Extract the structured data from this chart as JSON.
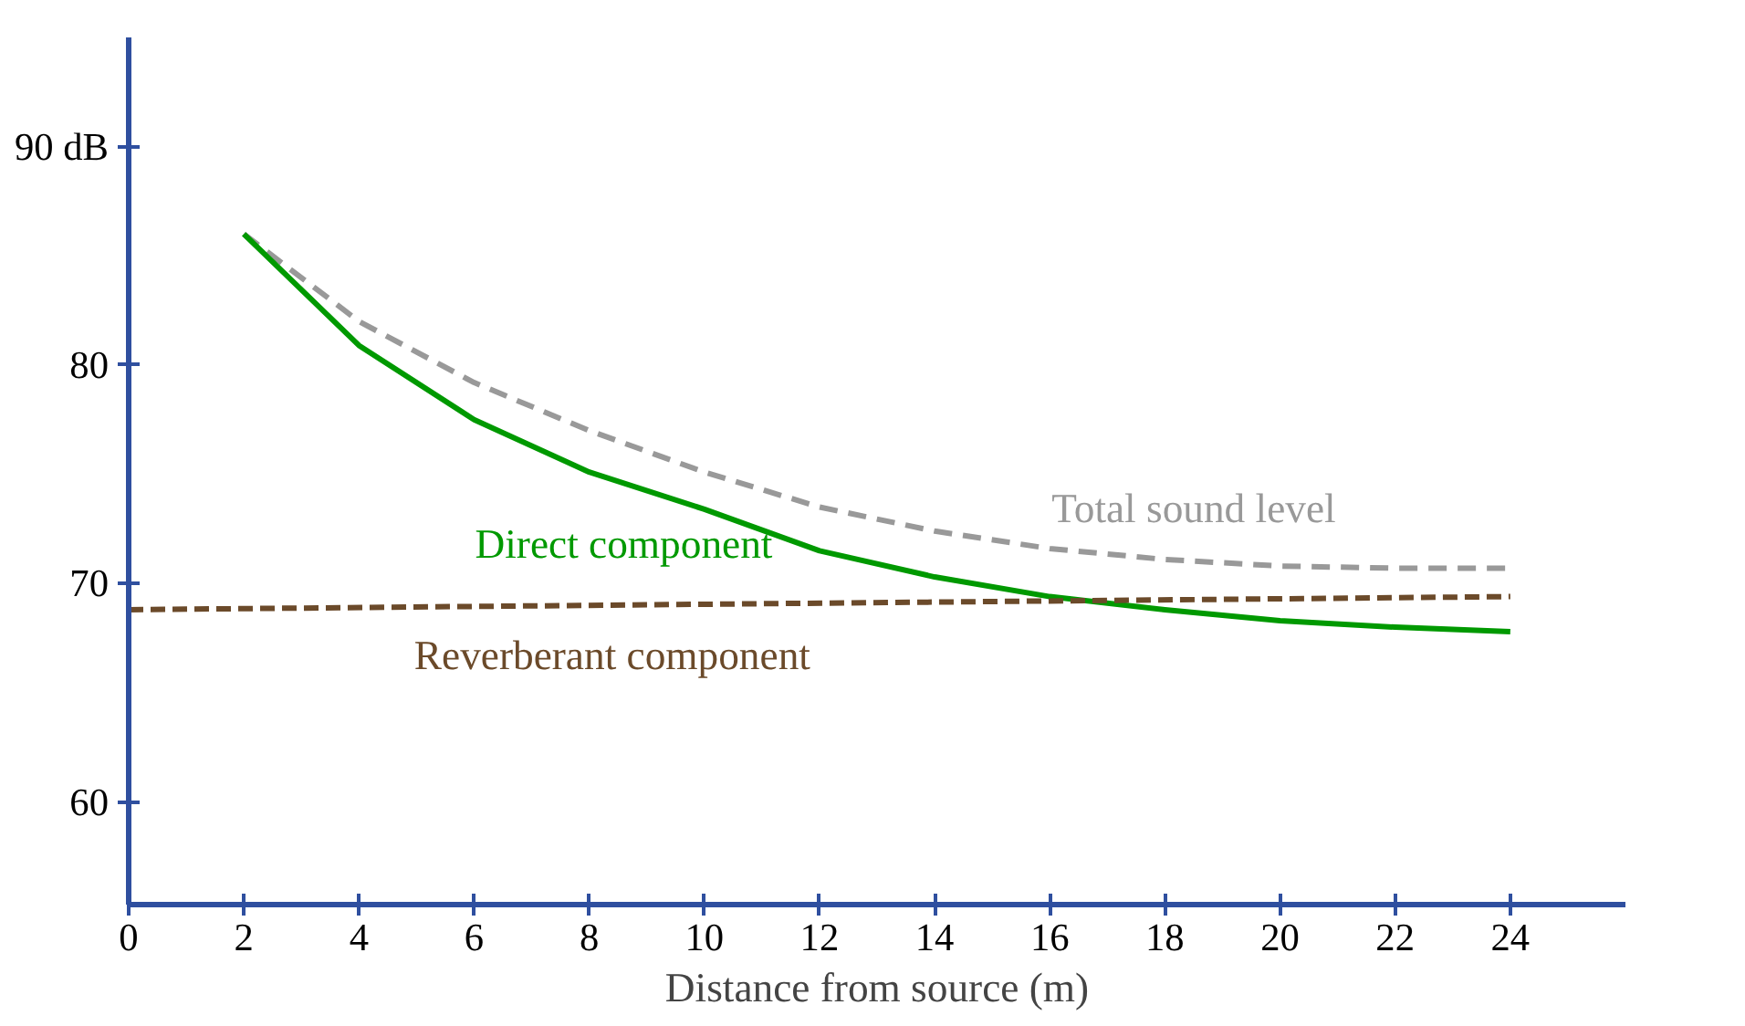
{
  "chart_data": {
    "type": "line",
    "xlabel": "Distance from source (m)",
    "xlim": [
      0,
      26
    ],
    "ylim": [
      55.3,
      95
    ],
    "xticks": [
      0,
      2,
      4,
      6,
      8,
      10,
      12,
      14,
      16,
      18,
      20,
      22,
      24
    ],
    "yticks": [
      60,
      70,
      80,
      {
        "value": 90,
        "label": "90 dB"
      }
    ],
    "grid": false,
    "marker": "none",
    "series": [
      {
        "name": "Total sound level",
        "color": "#999999",
        "line_style": "dashed",
        "x": [
          2,
          4,
          6,
          8,
          10,
          12,
          14,
          16,
          18,
          20,
          22,
          24
        ],
        "values": [
          86,
          82.0,
          79.2,
          77.0,
          75.1,
          73.5,
          72.4,
          71.6,
          71.1,
          70.8,
          70.7,
          70.7
        ]
      },
      {
        "name": "Direct component",
        "color": "#009900",
        "line_style": "solid",
        "x": [
          2,
          4,
          6,
          8,
          10,
          12,
          14,
          16,
          18,
          20,
          22,
          24
        ],
        "values": [
          86,
          80.9,
          77.5,
          75.1,
          73.4,
          71.5,
          70.3,
          69.4,
          68.8,
          68.3,
          68.0,
          67.8
        ]
      },
      {
        "name": "Reverberant component",
        "color": "#6b4a2a",
        "line_style": "dashed",
        "x": [
          0,
          24
        ],
        "values": [
          68.8,
          69.4
        ]
      }
    ]
  }
}
